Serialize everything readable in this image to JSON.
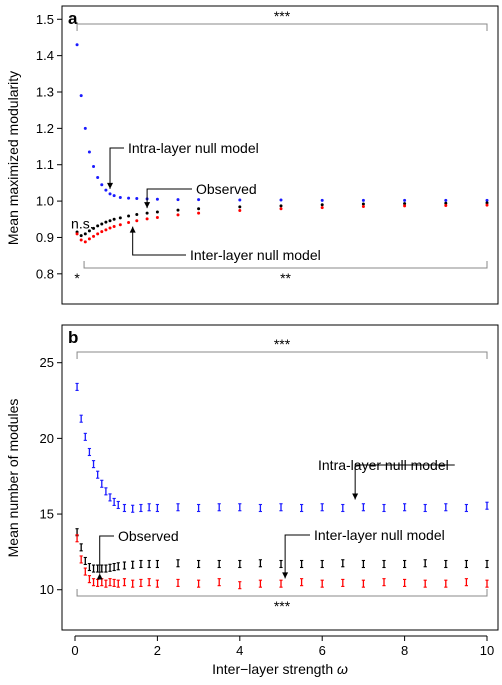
{
  "figure": {
    "xlabel_text": "Inter−layer strength ",
    "xlabel_symbol": "ω",
    "x_ticks": [
      0,
      2,
      4,
      6,
      8,
      10
    ],
    "x_tick_labels": [
      "0",
      "2",
      "4",
      "6",
      "8",
      "10"
    ]
  },
  "colors": {
    "observed": "#000000",
    "intra": "#1a1aff",
    "inter": "#ff0000",
    "bracket": "#888888"
  },
  "chart_data": [
    {
      "panel": "a",
      "type": "scatter",
      "ylabel": "Mean maximized modularity",
      "xlim": [
        0,
        10
      ],
      "ylim": [
        0.75,
        1.52
      ],
      "y_ticks": [
        0.8,
        0.9,
        1.0,
        1.1,
        1.2,
        1.3,
        1.4,
        1.5
      ],
      "y_tick_labels": [
        "0.8",
        "0.9",
        "1.0",
        "1.1",
        "1.2",
        "1.3",
        "1.4",
        "1.5"
      ],
      "series": [
        {
          "key": "intra",
          "x": [
            0.05,
            0.15,
            0.25,
            0.35,
            0.45,
            0.55,
            0.65,
            0.75,
            0.85,
            0.95,
            1.1,
            1.3,
            1.5,
            1.75,
            2.0,
            2.5,
            3.0,
            4.0,
            5.0,
            6.0,
            7.0,
            8.0,
            9.0,
            10.0
          ],
          "y": [
            1.43,
            1.29,
            1.2,
            1.135,
            1.095,
            1.065,
            1.045,
            1.03,
            1.02,
            1.015,
            1.01,
            1.008,
            1.007,
            1.006,
            1.005,
            1.004,
            1.004,
            1.003,
            1.003,
            1.002,
            1.002,
            1.002,
            1.002,
            1.002
          ]
        },
        {
          "key": "observed",
          "x": [
            0.05,
            0.15,
            0.25,
            0.35,
            0.45,
            0.55,
            0.65,
            0.75,
            0.85,
            0.95,
            1.1,
            1.3,
            1.5,
            1.75,
            2.0,
            2.5,
            3.0,
            4.0,
            5.0,
            6.0,
            7.0,
            8.0,
            9.0,
            10.0
          ],
          "y": [
            0.915,
            0.905,
            0.91,
            0.918,
            0.925,
            0.932,
            0.937,
            0.942,
            0.946,
            0.95,
            0.954,
            0.959,
            0.963,
            0.967,
            0.97,
            0.975,
            0.979,
            0.984,
            0.987,
            0.99,
            0.992,
            0.993,
            0.994,
            0.995
          ]
        },
        {
          "key": "inter",
          "x": [
            0.05,
            0.15,
            0.25,
            0.35,
            0.45,
            0.55,
            0.65,
            0.75,
            0.85,
            0.95,
            1.1,
            1.3,
            1.5,
            1.75,
            2.0,
            2.5,
            3.0,
            4.0,
            5.0,
            6.0,
            7.0,
            8.0,
            9.0,
            10.0
          ],
          "y": [
            0.91,
            0.893,
            0.888,
            0.896,
            0.903,
            0.91,
            0.916,
            0.921,
            0.926,
            0.93,
            0.935,
            0.941,
            0.946,
            0.951,
            0.955,
            0.962,
            0.967,
            0.974,
            0.979,
            0.982,
            0.985,
            0.987,
            0.988,
            0.989
          ]
        }
      ],
      "annotations": [
        {
          "label": "Intra-layer null model",
          "series": "intra",
          "target_x": 0.85
        },
        {
          "label": "Observed",
          "series": "observed",
          "target_x": 1.75
        },
        {
          "label": "Inter-layer null model",
          "series": "inter",
          "target_x": 1.4
        }
      ],
      "significance": {
        "top": "***",
        "bottom": "**",
        "left_star": "*",
        "left_ns": "n.s."
      }
    },
    {
      "panel": "b",
      "type": "scatter",
      "ylabel": "Mean number of modules",
      "xlim": [
        0,
        10
      ],
      "ylim": [
        8,
        26.5
      ],
      "y_ticks": [
        10,
        15,
        20,
        25
      ],
      "y_tick_labels": [
        "10",
        "15",
        "20",
        "25"
      ],
      "series": [
        {
          "key": "intra",
          "x": [
            0.05,
            0.15,
            0.25,
            0.35,
            0.45,
            0.55,
            0.65,
            0.75,
            0.85,
            0.95,
            1.05,
            1.2,
            1.4,
            1.6,
            1.8,
            2.0,
            2.5,
            3.0,
            3.5,
            4.0,
            4.5,
            5.0,
            5.5,
            6.0,
            6.5,
            7.0,
            7.5,
            8.0,
            8.5,
            9.0,
            9.5,
            10.0
          ],
          "y": [
            23.4,
            21.3,
            20.1,
            19.1,
            18.3,
            17.6,
            17.0,
            16.5,
            16.1,
            15.8,
            15.6,
            15.4,
            15.35,
            15.4,
            15.45,
            15.4,
            15.45,
            15.4,
            15.45,
            15.45,
            15.4,
            15.45,
            15.4,
            15.45,
            15.4,
            15.45,
            15.4,
            15.45,
            15.4,
            15.45,
            15.4,
            15.55
          ]
        },
        {
          "key": "observed",
          "x": [
            0.05,
            0.15,
            0.25,
            0.35,
            0.45,
            0.55,
            0.65,
            0.75,
            0.85,
            0.95,
            1.05,
            1.2,
            1.4,
            1.6,
            1.8,
            2.0,
            2.5,
            3.0,
            3.5,
            4.0,
            4.5,
            5.0,
            5.5,
            6.0,
            6.5,
            7.0,
            7.5,
            8.0,
            8.5,
            9.0,
            9.5,
            10.0
          ],
          "y": [
            13.8,
            12.8,
            11.9,
            11.5,
            11.4,
            11.4,
            11.4,
            11.4,
            11.45,
            11.5,
            11.55,
            11.6,
            11.65,
            11.7,
            11.7,
            11.7,
            11.75,
            11.7,
            11.7,
            11.7,
            11.75,
            11.7,
            11.7,
            11.7,
            11.75,
            11.7,
            11.7,
            11.7,
            11.75,
            11.7,
            11.7,
            11.7
          ]
        },
        {
          "key": "inter",
          "x": [
            0.05,
            0.15,
            0.25,
            0.35,
            0.45,
            0.55,
            0.65,
            0.75,
            0.85,
            0.95,
            1.05,
            1.2,
            1.4,
            1.6,
            1.8,
            2.0,
            2.5,
            3.0,
            3.5,
            4.0,
            4.5,
            5.0,
            5.5,
            6.0,
            6.5,
            7.0,
            7.5,
            8.0,
            8.5,
            9.0,
            9.5,
            10.0
          ],
          "y": [
            13.4,
            12.0,
            11.2,
            10.7,
            10.5,
            10.45,
            10.5,
            10.4,
            10.5,
            10.45,
            10.4,
            10.5,
            10.4,
            10.45,
            10.5,
            10.4,
            10.45,
            10.4,
            10.5,
            10.3,
            10.4,
            10.4,
            10.5,
            10.4,
            10.45,
            10.4,
            10.5,
            10.45,
            10.4,
            10.4,
            10.5,
            10.4
          ]
        }
      ],
      "annotations": [
        {
          "label": "Intra-layer null model",
          "series": "intra",
          "target_x": 6.8
        },
        {
          "label": "Observed",
          "series": "observed",
          "target_x": 0.6
        },
        {
          "label": "Inter-layer null model",
          "series": "inter",
          "target_x": 5.1
        }
      ],
      "significance": {
        "top": "***",
        "bottom": "***"
      }
    }
  ]
}
